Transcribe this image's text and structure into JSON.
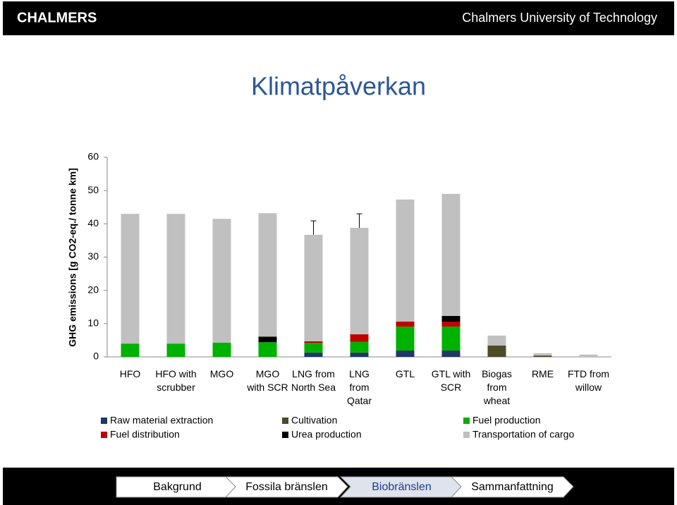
{
  "header": {
    "logo": "CHALMERS",
    "university": "Chalmers University of Technology"
  },
  "chart_data": {
    "type": "bar",
    "stacked": true,
    "title": "Klimatpåverkan",
    "y_label": "GHG emissions [g CO2-eq./ tonne km]",
    "categories": [
      "HFO",
      "HFO with\nscrubber",
      "MGO",
      "MGO\nwith SCR",
      "LNG from\nNorth Sea",
      "LNG\nfrom\nQatar",
      "GTL",
      "GTL  with\nSCR",
      "Biogas\nfrom\nwheat",
      "RME",
      "FTD from\nwillow"
    ],
    "series": [
      {
        "name": "Raw material extraction",
        "color": "#1f3864",
        "values": [
          0,
          0,
          0,
          0,
          1.3,
          1.3,
          1.9,
          1.9,
          0,
          0,
          0
        ]
      },
      {
        "name": "Cultivation",
        "color": "#4f4a28",
        "values": [
          0,
          0,
          0,
          0,
          0,
          0,
          0,
          0,
          3.4,
          0.4,
          0
        ]
      },
      {
        "name": "Fuel production",
        "color": "#00b200",
        "values": [
          4.0,
          4.0,
          4.3,
          4.4,
          2.9,
          3.2,
          7.2,
          7.2,
          0,
          0,
          0
        ]
      },
      {
        "name": "Fuel distribution",
        "color": "#c00000",
        "values": [
          0,
          0,
          0,
          0,
          0.5,
          2.3,
          1.5,
          1.5,
          0,
          0,
          0
        ]
      },
      {
        "name": "Urea production",
        "color": "#000000",
        "values": [
          0,
          0,
          0,
          1.7,
          0,
          0,
          0,
          1.7,
          0,
          0,
          0
        ]
      },
      {
        "name": "Transportation of cargo",
        "color": "#c0c0c0",
        "values": [
          39.0,
          39.0,
          37.2,
          37.1,
          32.0,
          32.0,
          36.7,
          36.7,
          3.0,
          0.7,
          0.7
        ]
      }
    ],
    "error_bars": [
      null,
      null,
      null,
      null,
      4.2,
      4.2,
      null,
      null,
      null,
      null,
      null
    ],
    "ylim": [
      0,
      60
    ],
    "yticks": [
      0,
      10,
      20,
      30,
      40,
      50,
      60
    ],
    "grid": false
  },
  "nav": {
    "items": [
      "Bakgrund",
      "Fossila bränslen",
      "Biobränslen",
      "Sammanfattning"
    ],
    "active": 2
  }
}
